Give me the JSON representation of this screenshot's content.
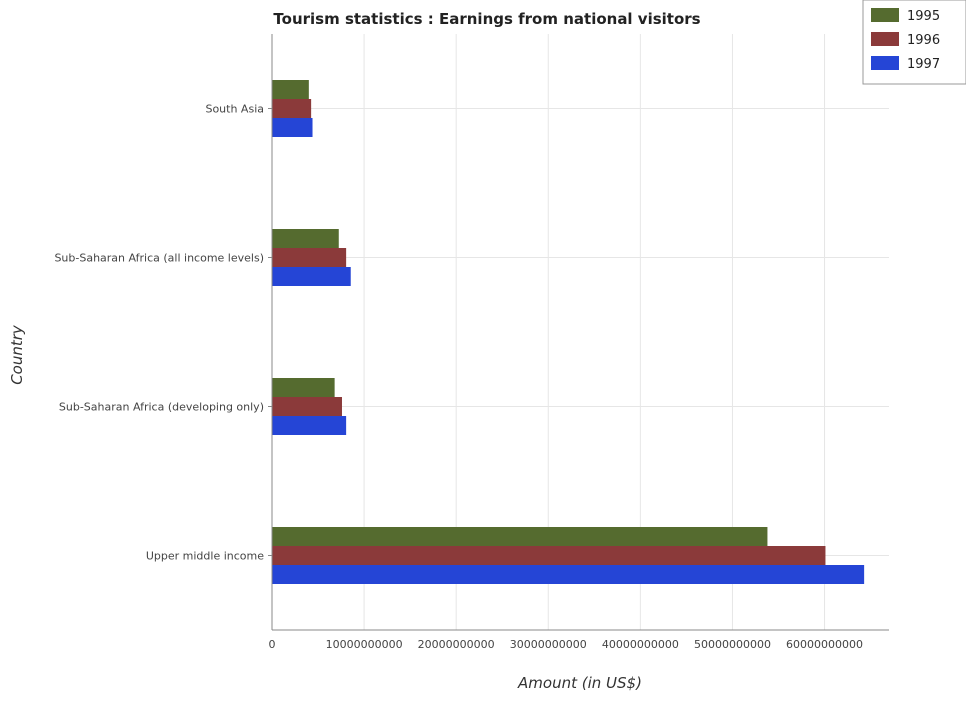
{
  "chart_data": {
    "type": "bar",
    "orientation": "horizontal",
    "title": "Tourism statistics : Earnings from national visitors",
    "xlabel": "Amount (in US$)",
    "ylabel": "Country",
    "categories": [
      "South Asia",
      "Sub-Saharan Africa (all income levels)",
      "Sub-Saharan Africa (developing only)",
      "Upper middle income"
    ],
    "series": [
      {
        "name": "1995",
        "color": "#556b2f",
        "values": [
          4000000000.0,
          7250000000.0,
          6800000000.0,
          53800000000.0
        ]
      },
      {
        "name": "1996",
        "color": "#8b3a3a",
        "values": [
          4250000000.0,
          8050000000.0,
          7600000000.0,
          60100000000.0
        ]
      },
      {
        "name": "1997",
        "color": "#2545d6",
        "values": [
          4400000000.0,
          8550000000.0,
          8050000000.0,
          64300000000.0
        ]
      }
    ],
    "xlim": [
      0,
      67000000000
    ],
    "xticks": [
      0,
      10000000000,
      20000000000,
      30000000000,
      40000000000,
      50000000000,
      60000000000
    ],
    "xtick_labels": [
      "0",
      "10000000000",
      "20000000000",
      "30000000000",
      "40000000000",
      "50000000000",
      "60000000000"
    ],
    "grid": true,
    "legend": "top-right"
  }
}
